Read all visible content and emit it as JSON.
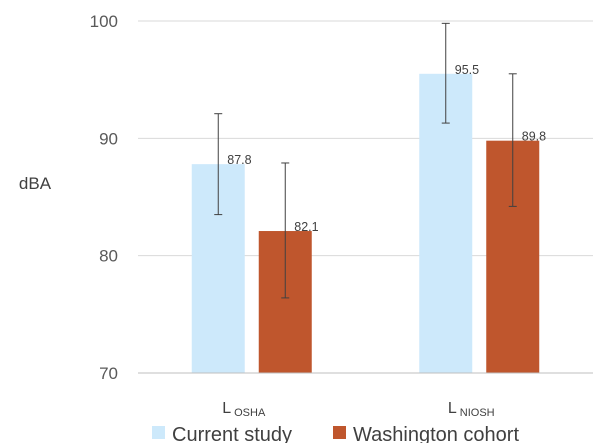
{
  "chart_data": {
    "type": "bar",
    "title": "",
    "xlabel": "",
    "ylabel": "dBA",
    "ylim": [
      70,
      100
    ],
    "yticks": [
      70,
      80,
      90,
      100
    ],
    "grid": true,
    "legend_position": "bottom",
    "categories": [
      {
        "main": "L",
        "sub": "OSHA"
      },
      {
        "main": "L",
        "sub": "NIOSH"
      }
    ],
    "series": [
      {
        "name": "Current study",
        "color": "#cde9fb",
        "values": [
          87.8,
          95.5
        ],
        "labels": [
          "87.8",
          "95.5"
        ],
        "error_low": [
          83.5,
          91.3
        ],
        "error_high": [
          92.1,
          99.8
        ]
      },
      {
        "name": "Washington cohort",
        "color": "#bf562d",
        "values": [
          82.1,
          89.8
        ],
        "labels": [
          "82.1",
          "89.8"
        ],
        "error_low": [
          76.4,
          84.2
        ],
        "error_high": [
          87.9,
          95.5
        ]
      }
    ]
  }
}
